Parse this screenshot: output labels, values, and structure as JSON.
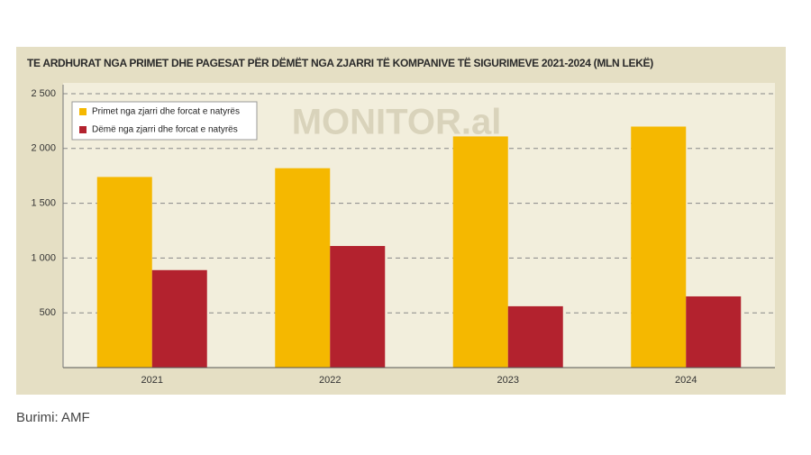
{
  "chart_data": {
    "type": "bar",
    "title": "TE ARDHURAT NGA PRIMET DHE PAGESAT PËR DËMËT NGA ZJARRI TË KOMPANIVE TË SIGURIMEVE 2021-2024 (MLN LEKË)",
    "watermark": "MONITOR.al",
    "categories": [
      "2021",
      "2022",
      "2023",
      "2024"
    ],
    "series": [
      {
        "name": "Primet nga zjarri dhe forcat e natyrës",
        "color": "#f5b800",
        "values": [
          1740,
          1820,
          2110,
          2200
        ]
      },
      {
        "name": "Dëmë nga zjarri dhe forcat e natyrës",
        "color": "#b3222e",
        "values": [
          890,
          1110,
          560,
          650
        ]
      }
    ],
    "ylim": [
      0,
      2500
    ],
    "yticks": [
      {
        "value": 500,
        "label": "500"
      },
      {
        "value": 1000,
        "label": "1 000"
      },
      {
        "value": 1500,
        "label": "1 500"
      },
      {
        "value": 2000,
        "label": "2 000"
      },
      {
        "value": 2500,
        "label": "2 500"
      }
    ],
    "grid": true,
    "legend": "top-left"
  },
  "source": "Burimi: AMF"
}
